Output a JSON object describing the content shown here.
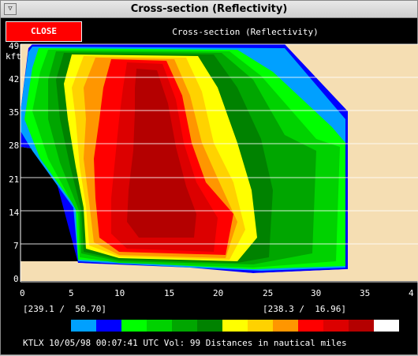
{
  "window": {
    "title": "Cross-section (Reflectivity)",
    "close_label": "CLOSE",
    "subtitle": "Cross-section (Reflectivity)"
  },
  "axes": {
    "y_unit": "kft",
    "y_ticks": [
      "49",
      "42",
      "35",
      "28",
      "21",
      "14",
      "7",
      "0"
    ],
    "x_ticks": [
      "0",
      "5",
      "10",
      "15",
      "20",
      "25",
      "30",
      "35",
      "4"
    ]
  },
  "coords": {
    "left": "[239.1 /  50.70]",
    "right": "[238.3 /  16.96]"
  },
  "colorbar": [
    "#00a0ff",
    "#0000ff",
    "#00ff00",
    "#00d200",
    "#00a600",
    "#008200",
    "#ffff00",
    "#ffd200",
    "#ff9600",
    "#ff0000",
    "#dc0000",
    "#b40000",
    "#ffffff"
  ],
  "footer": "KTLX 10/05/98 00:07:41 UTC Vol: 99 Distances in nautical miles",
  "palette": {
    "ground": "#f5deb3",
    "blue": "#0000ff",
    "lightblue": "#00a0ff",
    "green1": "#00ff00",
    "green2": "#00d200",
    "green3": "#00a600",
    "green4": "#008200",
    "yellow": "#ffff00",
    "gold": "#ffd200",
    "orange": "#ff9600",
    "red": "#ff0000",
    "darkred": "#dc0000",
    "darkred2": "#b40000"
  }
}
